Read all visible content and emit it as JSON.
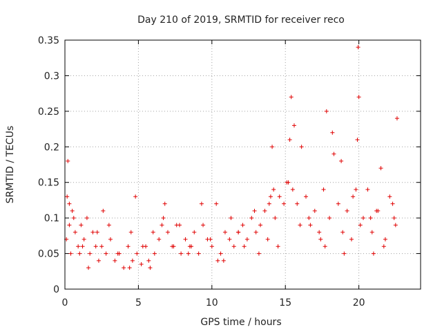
{
  "chart_data": {
    "type": "scatter",
    "title": "Day 210 of 2019, SRMTID for receiver reco",
    "xlabel": "GPS time / hours",
    "ylabel": "SRMTID / TECUs",
    "xlim": [
      0,
      24.2
    ],
    "ylim": [
      0,
      0.35
    ],
    "x_ticks": [
      0,
      5,
      10,
      15,
      20
    ],
    "x_tick_labels": [
      "0",
      "5",
      "10",
      "15",
      "20"
    ],
    "y_ticks": [
      0,
      0.05,
      0.1,
      0.15,
      0.2,
      0.25,
      0.3,
      0.35
    ],
    "y_tick_labels": [
      "0",
      "0.05",
      "0.1",
      "0.15",
      "0.2",
      "0.25",
      "0.3",
      "0.35"
    ],
    "grid": true,
    "marker": "+",
    "color": "#e00000",
    "series": [
      {
        "name": "SRMTID",
        "x": [
          0.1,
          0.2,
          0.3,
          0.4,
          0.5,
          0.7,
          0.9,
          1.1,
          1.3,
          1.5,
          1.7,
          1.9,
          2.1,
          2.3,
          2.5,
          2.8,
          3.1,
          3.4,
          3.7,
          4.0,
          4.3,
          4.6,
          4.9,
          5.2,
          5.5,
          5.8,
          6.1,
          6.4,
          6.7,
          7.0,
          7.3,
          7.6,
          7.9,
          8.2,
          8.5,
          8.8,
          9.1,
          9.4,
          9.7,
          10.0,
          10.3,
          10.6,
          10.9,
          11.2,
          11.5,
          11.8,
          12.1,
          12.4,
          12.7,
          13.0,
          13.3,
          13.6,
          13.9,
          14.1,
          14.3,
          14.6,
          14.9,
          15.2,
          15.4,
          15.6,
          15.8,
          16.1,
          16.4,
          16.7,
          17.0,
          17.3,
          17.6,
          17.8,
          18.0,
          18.3,
          18.6,
          18.9,
          19.2,
          19.5,
          19.8,
          19.95,
          20.0,
          20.3,
          20.6,
          20.9,
          21.2,
          21.5,
          21.8,
          22.1,
          22.4,
          22.6,
          0.15,
          0.6,
          1.0,
          1.6,
          2.2,
          3.0,
          4.4,
          4.8,
          5.3,
          6.0,
          6.8,
          7.8,
          8.6,
          9.3,
          10.4,
          11.3,
          12.2,
          12.9,
          13.8,
          14.2,
          14.5,
          15.3,
          15.5,
          16.0,
          17.7,
          18.2,
          19.0,
          19.9,
          20.1,
          21.0,
          21.3,
          22.5,
          0.3,
          1.2,
          2.6,
          3.6,
          4.5,
          5.7,
          6.6,
          7.4,
          8.4,
          9.9,
          10.8,
          11.8,
          13.2,
          14.0,
          15.1,
          16.6,
          17.4,
          18.8,
          19.6,
          20.8,
          21.7,
          22.3
        ],
        "y": [
          0.07,
          0.18,
          0.09,
          0.05,
          0.11,
          0.08,
          0.06,
          0.09,
          0.07,
          0.1,
          0.05,
          0.08,
          0.06,
          0.04,
          0.06,
          0.05,
          0.07,
          0.04,
          0.05,
          0.03,
          0.06,
          0.04,
          0.05,
          0.035,
          0.06,
          0.03,
          0.05,
          0.07,
          0.1,
          0.08,
          0.06,
          0.09,
          0.05,
          0.07,
          0.06,
          0.08,
          0.05,
          0.09,
          0.07,
          0.06,
          0.12,
          0.05,
          0.08,
          0.07,
          0.06,
          0.08,
          0.09,
          0.07,
          0.1,
          0.08,
          0.09,
          0.11,
          0.12,
          0.2,
          0.1,
          0.13,
          0.12,
          0.15,
          0.27,
          0.23,
          0.12,
          0.2,
          0.13,
          0.09,
          0.11,
          0.08,
          0.14,
          0.25,
          0.1,
          0.19,
          0.12,
          0.08,
          0.11,
          0.07,
          0.14,
          0.34,
          0.27,
          0.1,
          0.14,
          0.08,
          0.11,
          0.17,
          0.07,
          0.13,
          0.1,
          0.24,
          0.13,
          0.1,
          0.05,
          0.03,
          0.08,
          0.09,
          0.03,
          0.13,
          0.06,
          0.08,
          0.12,
          0.09,
          0.06,
          0.12,
          0.04,
          0.1,
          0.06,
          0.11,
          0.07,
          0.14,
          0.06,
          0.21,
          0.14,
          0.09,
          0.06,
          0.22,
          0.05,
          0.21,
          0.09,
          0.05,
          0.11,
          0.09,
          0.12,
          0.06,
          0.11,
          0.05,
          0.08,
          0.04,
          0.09,
          0.06,
          0.05,
          0.07,
          0.04,
          0.08,
          0.05,
          0.13,
          0.15,
          0.1,
          0.07,
          0.18,
          0.13,
          0.1,
          0.06,
          0.12
        ]
      }
    ]
  }
}
